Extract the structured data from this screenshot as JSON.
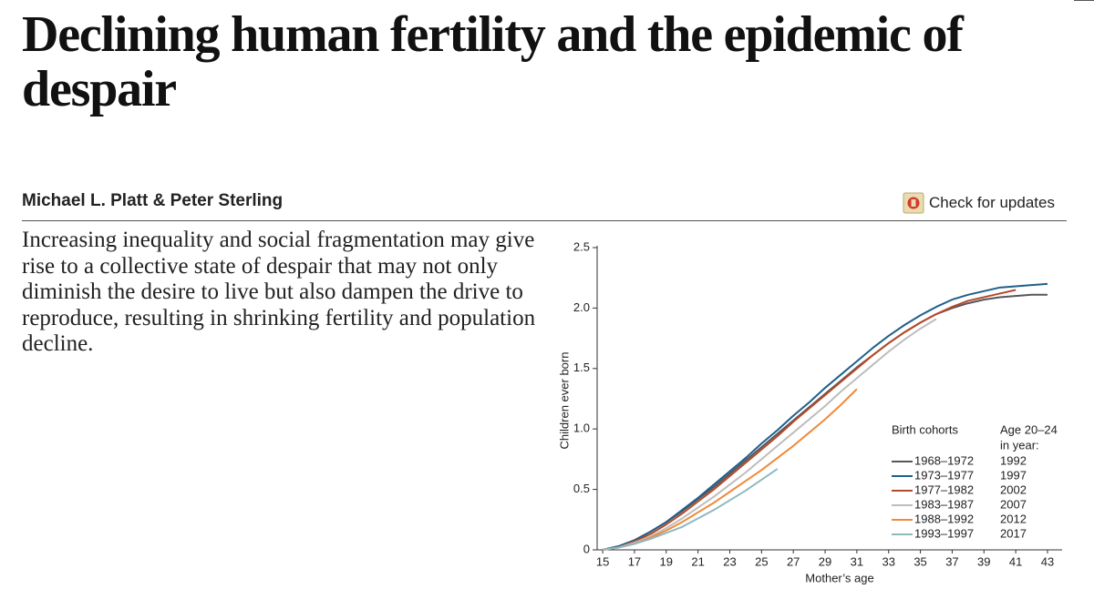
{
  "header": {
    "title": "Declining human fertility and the epidemic of despair",
    "authors": "Michael L. Platt & Peter Sterling",
    "check_updates": "Check for updates"
  },
  "abstract": "Increasing inequality and social fragmentation may give rise to a collective state of despair that may not only diminish the desire to live but also dampen the drive to reproduce, resulting in shrinking fertility and population decline.",
  "chart_data": {
    "type": "line",
    "x_label": "Mother’s age",
    "y_label": "Children ever born",
    "x": [
      15,
      16,
      17,
      18,
      19,
      20,
      21,
      22,
      23,
      24,
      25,
      26,
      27,
      28,
      29,
      30,
      31,
      32,
      33,
      34,
      35,
      36,
      37,
      38,
      39,
      40,
      41,
      42,
      43
    ],
    "xlim": [
      14.65,
      43.92
    ],
    "xticks": [
      15,
      17,
      19,
      21,
      23,
      25,
      27,
      29,
      31,
      33,
      35,
      37,
      39,
      41,
      43
    ],
    "ylim": [
      0,
      2.5
    ],
    "yticks": [
      0,
      0.5,
      {
        "value": 1,
        "label": "1.0"
      },
      1.5,
      {
        "value": 2,
        "label": "2.0"
      },
      2.5
    ],
    "legend_title": "Birth cohorts",
    "legend_year_title": [
      "Age 20–24",
      "in year:"
    ],
    "series": [
      {
        "name": "1968–1972",
        "color": "#55575a",
        "year_age_20_24": 1992,
        "values": [
          0,
          0.03,
          0.08,
          0.15,
          0.23,
          0.32,
          0.42,
          0.52,
          0.63,
          0.74,
          0.85,
          0.96,
          1.07,
          1.18,
          1.29,
          1.4,
          1.51,
          1.61,
          1.71,
          1.8,
          1.88,
          1.95,
          2.0,
          2.04,
          2.07,
          2.09,
          2.1,
          2.11,
          2.11
        ]
      },
      {
        "name": "1973–1977",
        "color": "#1f5f8b",
        "year_age_20_24": 1997,
        "values": [
          0,
          0.03,
          0.08,
          0.15,
          0.23,
          0.33,
          0.43,
          0.54,
          0.65,
          0.76,
          0.88,
          0.99,
          1.11,
          1.22,
          1.34,
          1.45,
          1.56,
          1.67,
          1.77,
          1.86,
          1.94,
          2.01,
          2.07,
          2.11,
          2.14,
          2.17,
          2.18,
          2.19,
          2.2
        ]
      },
      {
        "name": "1977–1982",
        "color": "#b5492a",
        "year_age_20_24": 2002,
        "values": [
          0,
          0.02,
          0.07,
          0.13,
          0.21,
          0.3,
          0.4,
          0.5,
          0.61,
          0.72,
          0.83,
          0.94,
          1.06,
          1.17,
          1.28,
          1.39,
          1.5,
          1.61,
          1.71,
          1.8,
          1.88,
          1.95,
          2.01,
          2.06,
          2.09,
          2.12,
          2.15,
          null,
          null
        ]
      },
      {
        "name": "1983–1987",
        "color": "#bdbdbd",
        "year_age_20_24": 2007,
        "values": [
          0,
          0.02,
          0.06,
          0.11,
          0.18,
          0.26,
          0.35,
          0.44,
          0.54,
          0.64,
          0.75,
          0.86,
          0.97,
          1.08,
          1.19,
          1.31,
          1.42,
          1.53,
          1.64,
          1.74,
          1.83,
          1.91,
          null,
          null,
          null,
          null,
          null,
          null,
          null
        ]
      },
      {
        "name": "1988–1992",
        "color": "#ef8a3a",
        "year_age_20_24": 2012,
        "values": [
          0,
          0.02,
          0.05,
          0.1,
          0.16,
          0.23,
          0.31,
          0.39,
          0.48,
          0.57,
          0.66,
          0.76,
          0.86,
          0.97,
          1.08,
          1.2,
          1.33,
          null,
          null,
          null,
          null,
          null,
          null,
          null,
          null,
          null,
          null,
          null,
          null
        ]
      },
      {
        "name": "1993–1997",
        "color": "#8fb8c0",
        "year_age_20_24": 2017,
        "values": [
          0,
          0.02,
          0.05,
          0.09,
          0.14,
          0.19,
          0.26,
          0.33,
          0.41,
          0.49,
          0.58,
          0.67,
          null,
          null,
          null,
          null,
          null,
          null,
          null,
          null,
          null,
          null,
          null,
          null,
          null,
          null,
          null,
          null,
          null
        ]
      }
    ]
  }
}
